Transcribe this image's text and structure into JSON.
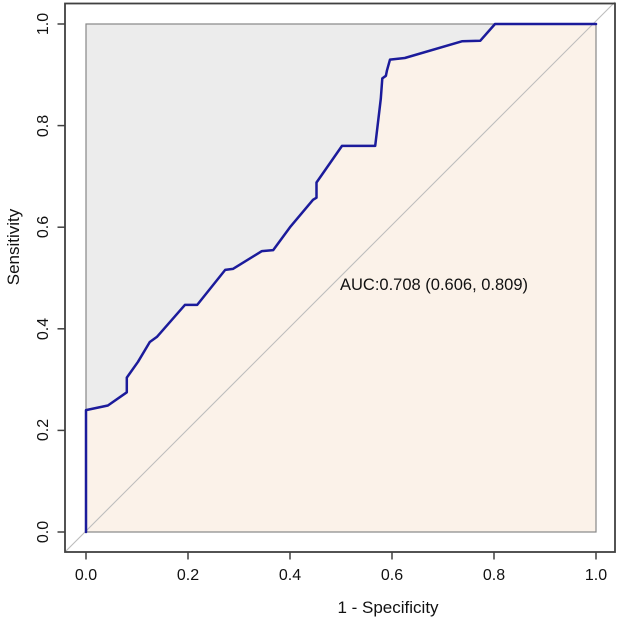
{
  "chart_data": {
    "type": "line",
    "subtype": "roc-curve",
    "title": "",
    "xlabel": "1 - Specificity",
    "ylabel": "Sensitivity",
    "xlim": [
      -0.04,
      1.04
    ],
    "ylim": [
      -0.04,
      1.04
    ],
    "grid": false,
    "legend_position": "none",
    "x_ticks": [
      0,
      0.2,
      0.4,
      0.6,
      0.8,
      1.0
    ],
    "x_tick_labels": [
      "0.0",
      "0.2",
      "0.4",
      "0.6",
      "0.8",
      "1.0"
    ],
    "y_ticks": [
      0,
      0.2,
      0.4,
      0.6,
      0.8,
      1.0
    ],
    "y_tick_labels": [
      "0.0",
      "0.2",
      "0.4",
      "0.6",
      "0.8",
      "1.0"
    ],
    "annotation": {
      "text": "AUC:0.708 (0.606, 0.809)",
      "auc": 0.708,
      "ci_lower": 0.606,
      "ci_upper": 0.809
    },
    "series": [
      {
        "name": "ROC curve",
        "color": "#1b1b9b",
        "points": [
          [
            0.0,
            0.0
          ],
          [
            0.0,
            0.24
          ],
          [
            0.043,
            0.249
          ],
          [
            0.08,
            0.275
          ],
          [
            0.08,
            0.304
          ],
          [
            0.102,
            0.335
          ],
          [
            0.125,
            0.374
          ],
          [
            0.139,
            0.384
          ],
          [
            0.194,
            0.447
          ],
          [
            0.218,
            0.447
          ],
          [
            0.273,
            0.516
          ],
          [
            0.288,
            0.518
          ],
          [
            0.345,
            0.553
          ],
          [
            0.367,
            0.555
          ],
          [
            0.4,
            0.6
          ],
          [
            0.445,
            0.654
          ],
          [
            0.452,
            0.658
          ],
          [
            0.452,
            0.688
          ],
          [
            0.502,
            0.76
          ],
          [
            0.567,
            0.76
          ],
          [
            0.578,
            0.853
          ],
          [
            0.581,
            0.893
          ],
          [
            0.588,
            0.898
          ],
          [
            0.59,
            0.908
          ],
          [
            0.596,
            0.93
          ],
          [
            0.625,
            0.933
          ],
          [
            0.737,
            0.966
          ],
          [
            0.773,
            0.967
          ],
          [
            0.802,
            1.0
          ],
          [
            1.0,
            1.0
          ]
        ]
      }
    ],
    "reference_line": {
      "from": [
        0,
        0
      ],
      "to": [
        1,
        1
      ],
      "color": "#bdbdbd"
    },
    "colors": {
      "above_curve_fill": "#ececec",
      "below_curve_fill": "#fbf2e9",
      "curve": "#1b1b9b",
      "inner_border": "#878787",
      "frame": "#404040",
      "text": "#111111"
    }
  }
}
